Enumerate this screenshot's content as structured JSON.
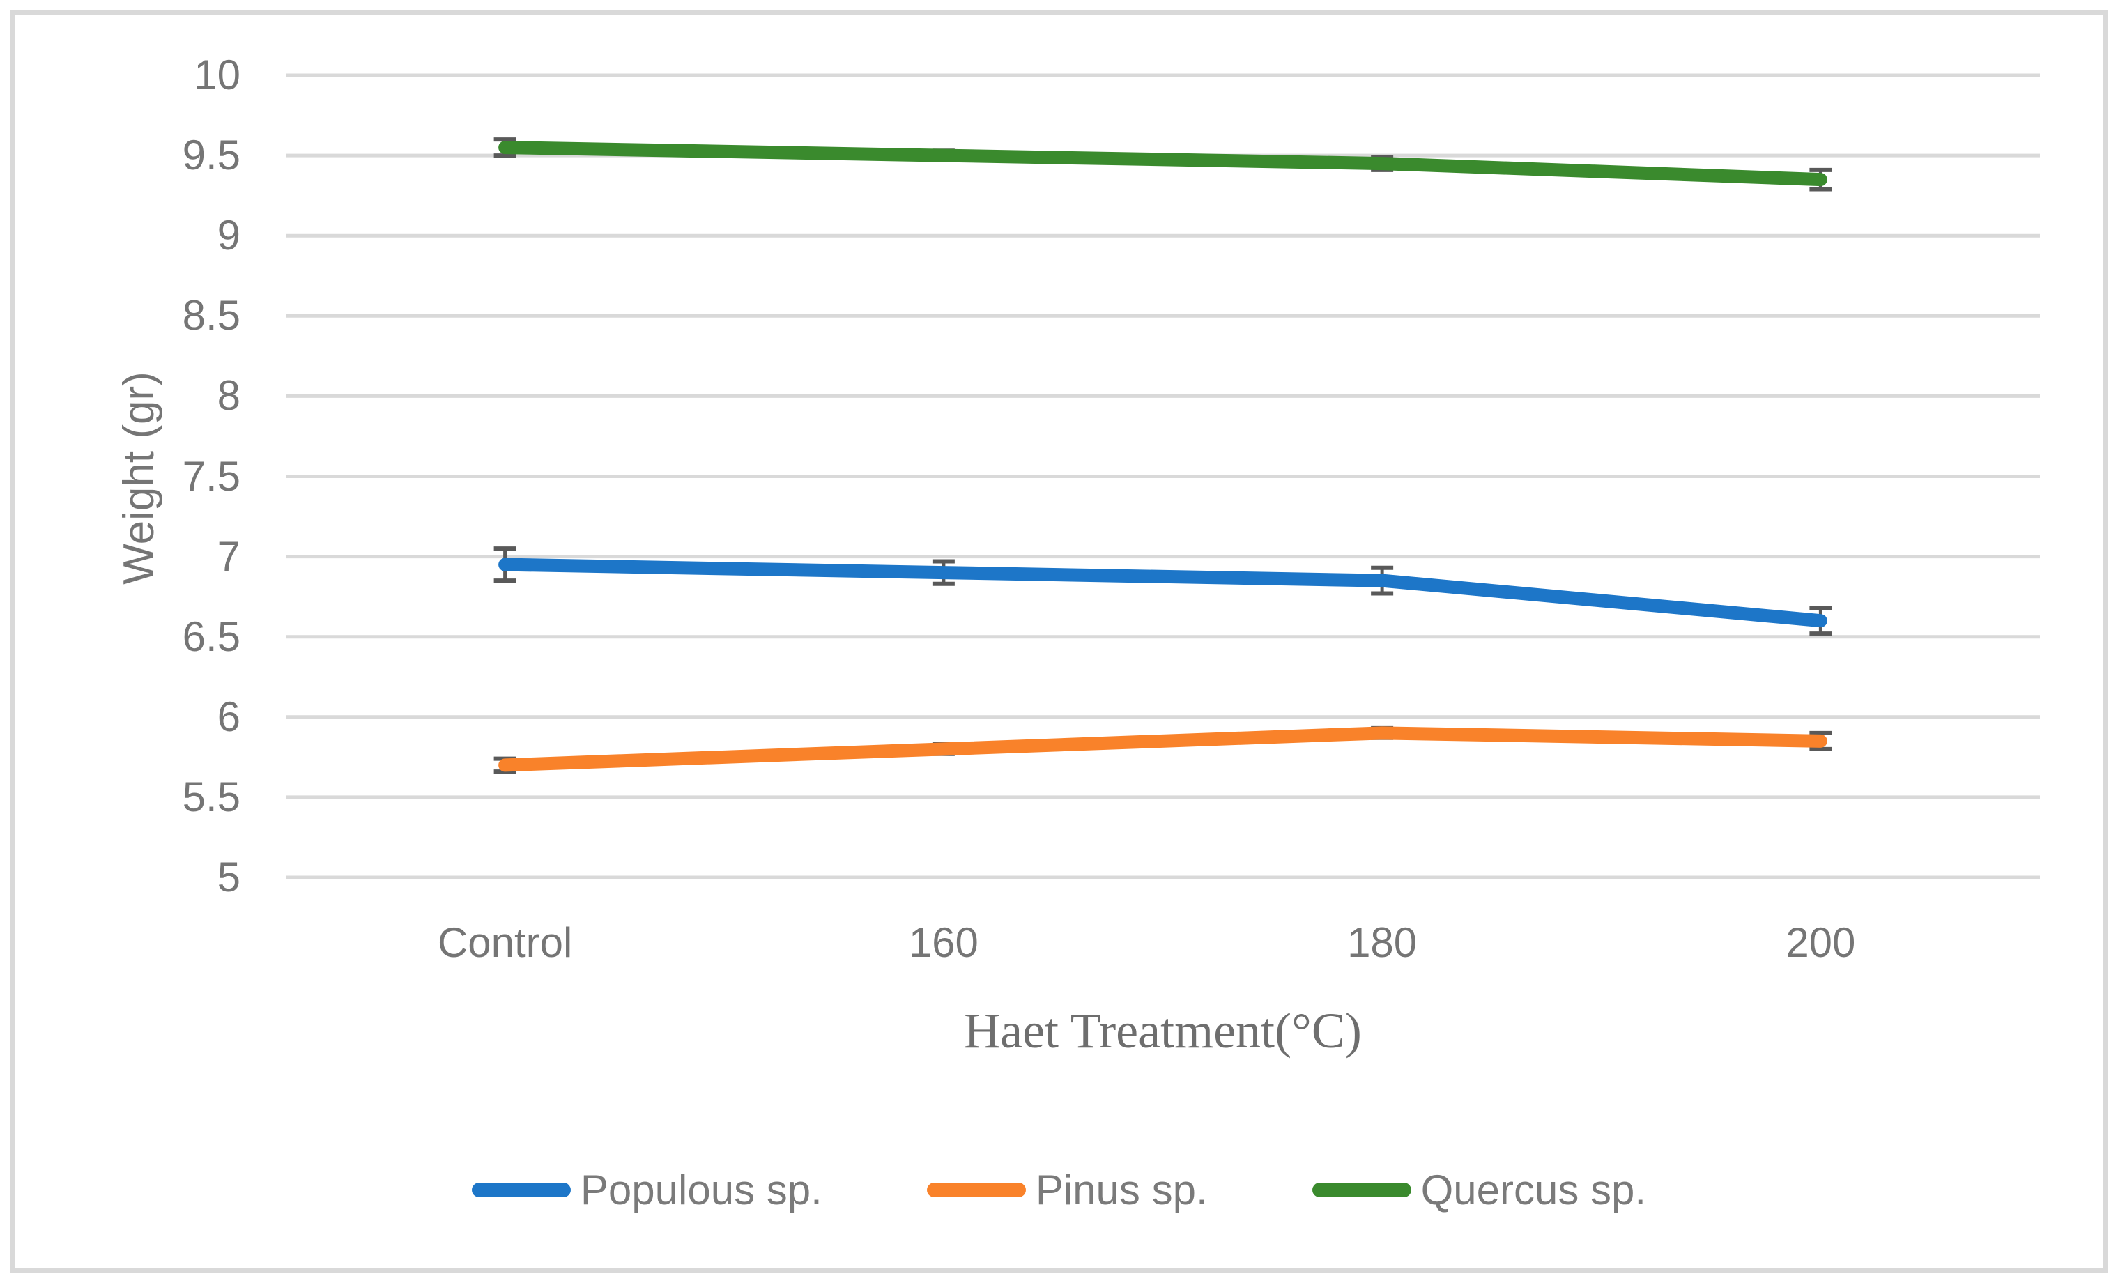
{
  "figure": {
    "background_color": "#FFFFFF",
    "frame_color": "#D9D9D9"
  },
  "chart_data": {
    "type": "line",
    "title": "",
    "xlabel": "Haet Treatment(°C)",
    "ylabel": "Weight (gr)",
    "categories": [
      "Control",
      "160",
      "180",
      "200"
    ],
    "series": [
      {
        "name": "Populous sp.",
        "color": "#1D76C8",
        "values": [
          6.95,
          6.9,
          6.85,
          6.6
        ],
        "errors": [
          0.1,
          0.07,
          0.08,
          0.08
        ]
      },
      {
        "name": "Pinus sp.",
        "color": "#F9822A",
        "values": [
          5.7,
          5.8,
          5.9,
          5.85
        ],
        "errors": [
          0.04,
          0.03,
          0.03,
          0.05
        ]
      },
      {
        "name": "Quercus sp.",
        "color": "#3A8A2D",
        "values": [
          9.55,
          9.5,
          9.45,
          9.35
        ],
        "errors": [
          0.05,
          0.03,
          0.04,
          0.06
        ]
      }
    ],
    "ylim": [
      5,
      10
    ],
    "yticks": [
      {
        "value": 5,
        "label": "5"
      },
      {
        "value": 5.5,
        "label": "5.5"
      },
      {
        "value": 6,
        "label": "6"
      },
      {
        "value": 6.5,
        "label": "6.5"
      },
      {
        "value": 7,
        "label": "7"
      },
      {
        "value": 7.5,
        "label": "7.5"
      },
      {
        "value": 8,
        "label": "8"
      },
      {
        "value": 8.5,
        "label": "8.5"
      },
      {
        "value": 9,
        "label": "9"
      },
      {
        "value": 9.5,
        "label": "9.5"
      },
      {
        "value": 10,
        "label": "10"
      }
    ],
    "grid": "horizontal",
    "gridline_color": "#D9D9D9",
    "error_bar_color": "#595959",
    "axis_text_color": "#757575",
    "legend_position": "bottom",
    "markers": "none"
  }
}
